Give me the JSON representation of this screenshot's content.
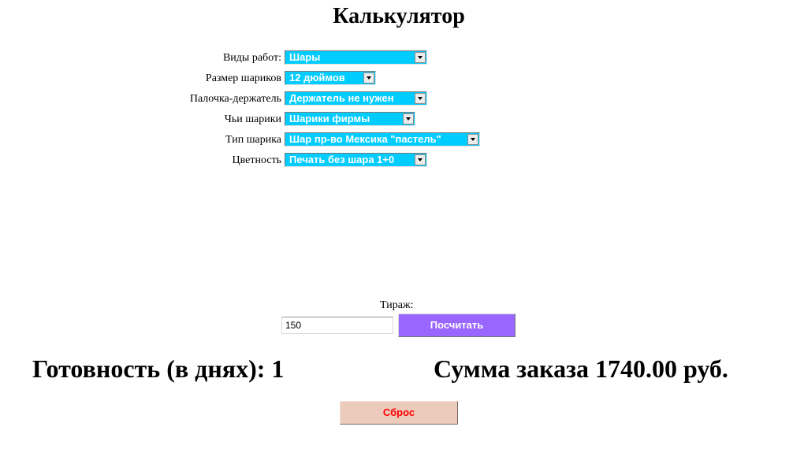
{
  "title": "Калькулятор",
  "form": {
    "fields": [
      {
        "label": "Виды работ:",
        "value": "Шары"
      },
      {
        "label": "Размер шариков",
        "value": "12 дюймов"
      },
      {
        "label": "Палочка-держатель",
        "value": "Держатель не нужен"
      },
      {
        "label": "Чьи шарики",
        "value": "Шарики фирмы"
      },
      {
        "label": "Тип шарика",
        "value": "Шар пр-во Мексика \"пастель\""
      },
      {
        "label": "Цветность",
        "value": "Печать без шара 1+0"
      }
    ]
  },
  "quantity": {
    "label": "Тираж:",
    "value": "150"
  },
  "buttons": {
    "calculate": "Посчитать",
    "reset": "Сброс"
  },
  "results": {
    "readiness": "Готовность (в днях): 1",
    "total": "Сумма заказа 1740.00 руб."
  },
  "colors": {
    "select_bg": "#00ccff",
    "calc_button": "#9966ff",
    "reset_button": "#eccbbd",
    "reset_text": "#ff0000"
  }
}
